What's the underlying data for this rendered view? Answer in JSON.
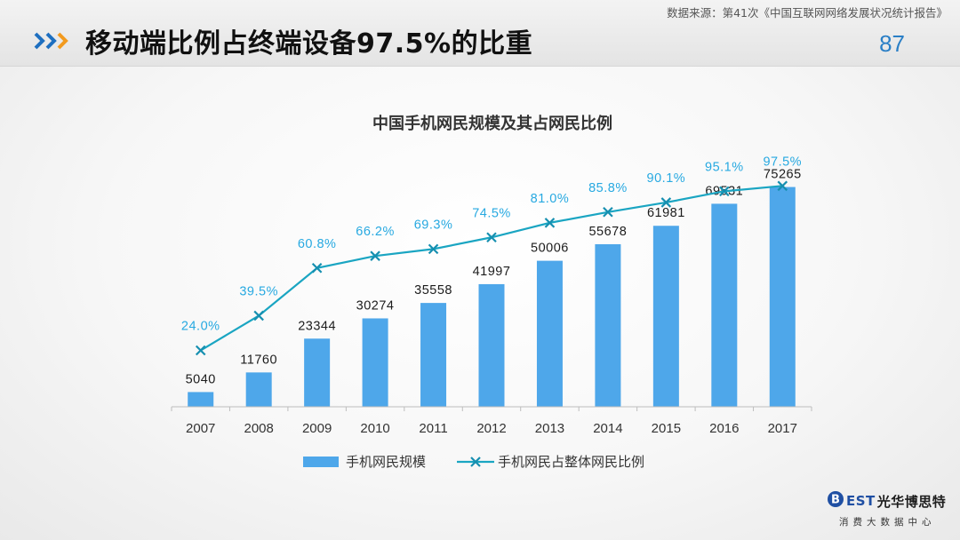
{
  "header": {
    "source": "数据来源：第41次《中国互联网网络发展状况统计报告》",
    "title": "移动端比例占终端设备97.5%的比重",
    "page_number": "87",
    "accent_color": "#1e6fc0"
  },
  "chart_data": {
    "type": "bar",
    "title": "中国手机网民规模及其占网民比例",
    "categories": [
      "2007",
      "2008",
      "2009",
      "2010",
      "2011",
      "2012",
      "2013",
      "2014",
      "2015",
      "2016",
      "2017"
    ],
    "series": [
      {
        "name": "手机网民规模",
        "type": "bar",
        "values": [
          5040,
          11760,
          23344,
          30274,
          35558,
          41997,
          50006,
          55678,
          61981,
          69531,
          75265
        ],
        "labels": [
          "5040",
          "11760",
          "23344",
          "30274",
          "35558",
          "41997",
          "50006",
          "55678",
          "61981",
          "69531",
          "75265"
        ],
        "color": "#4ea7ea"
      },
      {
        "name": "手机网民占整体网民比例",
        "type": "line",
        "values": [
          24.0,
          39.5,
          60.8,
          66.2,
          69.3,
          74.5,
          81.0,
          85.8,
          90.1,
          95.1,
          97.5
        ],
        "labels": [
          "24.0%",
          "39.5%",
          "60.8%",
          "66.2%",
          "69.3%",
          "74.5%",
          "81.0%",
          "85.8%",
          "90.1%",
          "95.1%",
          "97.5%"
        ],
        "color": "#1aa5c2",
        "label_color": "#27a9e1"
      }
    ],
    "ylim": [
      0,
      80000
    ],
    "y2lim": [
      0,
      100
    ],
    "legend": "bottom"
  },
  "logo": {
    "letter": "B",
    "word": "EST",
    "name": "光华博思特",
    "subtitle": "消费大数据中心"
  }
}
